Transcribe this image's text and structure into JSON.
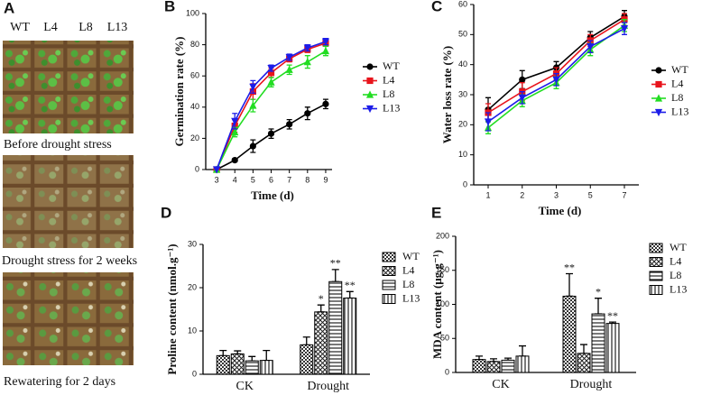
{
  "panel_a": {
    "label": "A",
    "genotypes": [
      "WT",
      "L4",
      "L8",
      "L13"
    ],
    "captions": [
      "Before drought stress",
      "Drought stress for 2 weeks",
      "Rewatering for 2 days"
    ]
  },
  "chart_data": [
    {
      "type": "line",
      "panel": "B",
      "ylabel": "Germination rate (%)",
      "xlabel": "Time (d)",
      "x": [
        3,
        4,
        5,
        6,
        7,
        8,
        9
      ],
      "xlim": [
        2.4,
        9.35
      ],
      "xticks": [
        3,
        4,
        5,
        6,
        7,
        8,
        9
      ],
      "ylim": [
        0,
        100
      ],
      "yticks": [
        0,
        20,
        40,
        60,
        80,
        100
      ],
      "series": [
        {
          "name": "WT",
          "color": "#000000",
          "marker": "circle",
          "values": [
            0,
            6,
            15,
            23,
            29,
            36,
            42
          ],
          "errors": [
            0,
            1,
            4,
            3,
            3,
            4,
            3
          ]
        },
        {
          "name": "L4",
          "color": "#e8141c",
          "marker": "square",
          "values": [
            0,
            28,
            50,
            62,
            71,
            77,
            81
          ],
          "errors": [
            0,
            4,
            5,
            3,
            2,
            2,
            2
          ]
        },
        {
          "name": "L8",
          "color": "#22dd22",
          "marker": "triangle-up",
          "values": [
            0,
            24,
            41,
            56,
            64,
            69,
            76
          ],
          "errors": [
            0,
            3,
            4,
            3,
            3,
            4,
            3
          ]
        },
        {
          "name": "L13",
          "color": "#1c1ce8",
          "marker": "triangle-down",
          "values": [
            0,
            31,
            53,
            65,
            72,
            78,
            82
          ],
          "errors": [
            0,
            5,
            4,
            2,
            2,
            2,
            2
          ]
        }
      ]
    },
    {
      "type": "line",
      "panel": "C",
      "ylabel": "Water loss rate (%)",
      "xlabel": "Time (d)",
      "categories": [
        "1",
        "2",
        "3",
        "5",
        "7"
      ],
      "ylim": [
        0,
        60
      ],
      "yticks": [
        0,
        10,
        20,
        30,
        40,
        50,
        60
      ],
      "series": [
        {
          "name": "WT",
          "color": "#000000",
          "marker": "circle",
          "values": [
            25,
            35,
            39,
            49,
            56
          ],
          "errors": [
            4,
            3,
            2,
            2,
            2
          ]
        },
        {
          "name": "L4",
          "color": "#e8141c",
          "marker": "square",
          "values": [
            24,
            31,
            37,
            48,
            55
          ],
          "errors": [
            3,
            3,
            2,
            2,
            2
          ]
        },
        {
          "name": "L8",
          "color": "#22dd22",
          "marker": "triangle-up",
          "values": [
            19,
            28,
            34,
            45,
            53
          ],
          "errors": [
            2,
            2,
            2,
            2,
            2
          ]
        },
        {
          "name": "L13",
          "color": "#1c1ce8",
          "marker": "triangle-down",
          "values": [
            21,
            29,
            35,
            46,
            52
          ],
          "errors": [
            3,
            2,
            2,
            2,
            2
          ]
        }
      ]
    },
    {
      "type": "bar",
      "panel": "D",
      "ylabel": "Proline content (nmol.g⁻¹)",
      "categories": [
        "CK",
        "Drought"
      ],
      "ylim": [
        0,
        30
      ],
      "yticks": [
        0,
        10,
        20,
        30
      ],
      "series": [
        {
          "name": "WT",
          "values": [
            4.3,
            6.8
          ],
          "errors": [
            1.2,
            1.8
          ],
          "stars": [
            null,
            null
          ]
        },
        {
          "name": "L4",
          "values": [
            4.7,
            14.4
          ],
          "errors": [
            0.7,
            1.6
          ],
          "stars": [
            null,
            "*"
          ]
        },
        {
          "name": "L8",
          "values": [
            3.1,
            21.4
          ],
          "errors": [
            1,
            2.8
          ],
          "stars": [
            null,
            "**"
          ]
        },
        {
          "name": "L13",
          "values": [
            3.2,
            17.6
          ],
          "errors": [
            2.3,
            1.5
          ],
          "stars": [
            null,
            "**"
          ]
        }
      ]
    },
    {
      "type": "bar",
      "panel": "E",
      "ylabel": "MDA content (μg.g⁻¹)",
      "categories": [
        "CK",
        "Drought"
      ],
      "ylim": [
        0,
        200
      ],
      "yticks": [
        0,
        50,
        100,
        150,
        200
      ],
      "series": [
        {
          "name": "WT",
          "values": [
            19,
            112
          ],
          "errors": [
            5,
            33
          ],
          "stars": [
            null,
            "**"
          ]
        },
        {
          "name": "L4",
          "values": [
            16,
            28
          ],
          "errors": [
            4,
            13
          ],
          "stars": [
            null,
            null
          ]
        },
        {
          "name": "L8",
          "values": [
            18,
            86
          ],
          "errors": [
            3,
            23
          ],
          "stars": [
            null,
            "*"
          ]
        },
        {
          "name": "L13",
          "values": [
            24,
            72
          ],
          "errors": [
            15,
            2
          ],
          "stars": [
            null,
            "**"
          ]
        }
      ]
    }
  ]
}
